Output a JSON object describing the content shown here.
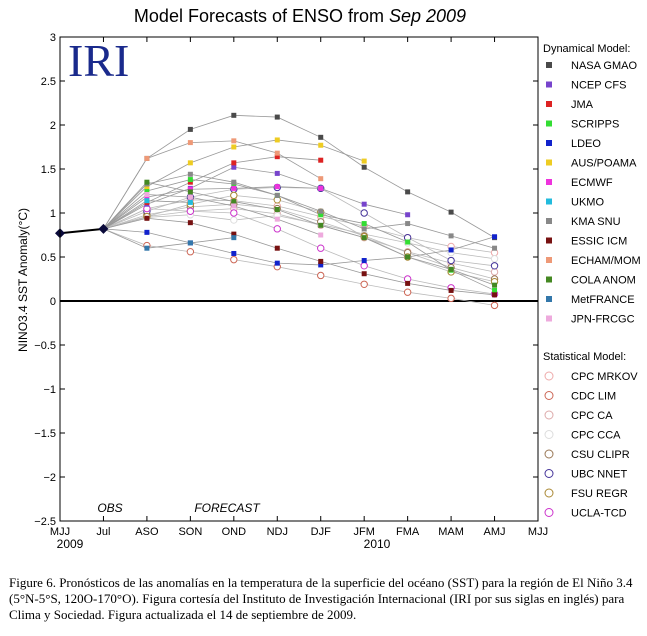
{
  "chart_data": {
    "type": "line",
    "title_prefix": "Model Forecasts of ENSO from ",
    "title_italic": "Sep 2009",
    "ylabel": "NINO3.4 SST Anomaly(°C)",
    "ylim": [
      -2.5,
      3
    ],
    "y_ticks": [
      "3",
      "2.5",
      "2",
      "1.5",
      "1",
      "0.5",
      "0",
      "−0.5",
      "−1",
      "−1.5",
      "−2",
      "−2.5"
    ],
    "y_tick_values": [
      3,
      2.5,
      2,
      1.5,
      1,
      0.5,
      0,
      -0.5,
      -1,
      -1.5,
      -2,
      -2.5
    ],
    "x_categories": [
      "MJJ",
      "Jul",
      "ASO",
      "SON",
      "OND",
      "NDJ",
      "DJF",
      "JFM",
      "FMA",
      "MAM",
      "AMJ",
      "MJJ"
    ],
    "year_labels": {
      "start": "2009",
      "end": "2010"
    },
    "obs_label": "OBS",
    "forecast_label": "FORECAST",
    "logo_text": "IRI",
    "observed": [
      0.77,
      0.82
    ],
    "dynamical_header": "Dynamical Model:",
    "statistical_header": "Statistical Model:",
    "dynamical": [
      {
        "name": "NASA GMAO",
        "color": "#4a4a4a",
        "values": [
          1.62,
          1.95,
          2.11,
          2.09,
          1.86,
          1.52,
          1.24,
          1.01,
          0.72
        ]
      },
      {
        "name": "NCEP CFS",
        "color": "#7744cc",
        "values": [
          1.1,
          1.28,
          1.52,
          1.45,
          1.28,
          1.1,
          0.98,
          null,
          null
        ]
      },
      {
        "name": "JMA",
        "color": "#dd2222",
        "values": [
          1.12,
          1.35,
          1.57,
          1.64,
          1.6,
          null,
          null,
          null,
          null
        ]
      },
      {
        "name": "SCRIPPS",
        "color": "#33dd33",
        "values": [
          1.25,
          1.38,
          1.33,
          1.2,
          0.98,
          0.88,
          0.67,
          0.35,
          0.12
        ]
      },
      {
        "name": "LDEO",
        "color": "#1122cc",
        "values": [
          0.78,
          0.66,
          0.54,
          0.43,
          0.41,
          0.46,
          0.5,
          0.58,
          0.73
        ]
      },
      {
        "name": "AUS/POAMA",
        "color": "#eecc22",
        "values": [
          1.3,
          1.57,
          1.75,
          1.83,
          1.77,
          1.59,
          null,
          null,
          null
        ]
      },
      {
        "name": "ECMWF",
        "color": "#ee33dd",
        "values": [
          1.18,
          1.27,
          1.28,
          1.3,
          1.28,
          null,
          null,
          null,
          null
        ]
      },
      {
        "name": "UKMO",
        "color": "#22bbdd",
        "values": [
          1.14,
          1.12,
          null,
          null,
          null,
          null,
          null,
          null,
          null
        ]
      },
      {
        "name": "KMA SNU",
        "color": "#888888",
        "values": [
          1.33,
          1.44,
          1.35,
          1.2,
          1.02,
          0.82,
          0.88,
          0.74,
          0.6
        ]
      },
      {
        "name": "ESSIC ICM",
        "color": "#771111",
        "values": [
          0.94,
          0.89,
          0.76,
          0.6,
          0.45,
          0.31,
          0.2,
          0.12,
          0.07
        ]
      },
      {
        "name": "ECHAM/MOM",
        "color": "#ee9977",
        "values": [
          1.62,
          1.8,
          1.82,
          1.68,
          1.39,
          null,
          null,
          null,
          null
        ]
      },
      {
        "name": "COLA ANOM",
        "color": "#448822",
        "values": [
          1.35,
          1.24,
          1.13,
          1.04,
          0.86,
          0.72,
          0.5,
          0.36,
          0.18
        ]
      },
      {
        "name": "MetFRANCE",
        "color": "#3377aa",
        "values": [
          0.6,
          0.66,
          0.72,
          null,
          null,
          null,
          null,
          null,
          null
        ]
      },
      {
        "name": "JPN-FRCGC",
        "color": "#eeaadd",
        "values": [
          1.21,
          1.18,
          1.08,
          0.93,
          0.75,
          null,
          null,
          null,
          null
        ]
      }
    ],
    "statistical": [
      {
        "name": "CPC MRKOV",
        "color": "#eeaaaa",
        "values": [
          1.05,
          1.15,
          1.14,
          1.08,
          0.96,
          0.85,
          0.72,
          0.62,
          0.55
        ]
      },
      {
        "name": "CDC LIM",
        "color": "#cc6655",
        "values": [
          0.63,
          0.56,
          0.47,
          0.39,
          0.29,
          0.19,
          0.1,
          0.03,
          -0.05
        ]
      },
      {
        "name": "CPC CA",
        "color": "#ddaaaa",
        "values": [
          0.96,
          1.02,
          1.05,
          0.99,
          0.86,
          0.72,
          0.56,
          0.43,
          0.33
        ]
      },
      {
        "name": "CPC CCA",
        "color": "#dddddd",
        "values": [
          0.95,
          0.98,
          0.92,
          0.97,
          0.87,
          0.76,
          0.66,
          0.55,
          0.48
        ]
      },
      {
        "name": "CSU CLIPR",
        "color": "#997755",
        "values": [
          0.98,
          1.07,
          1.1,
          1.05,
          0.9,
          0.74,
          0.55,
          0.38,
          0.25
        ]
      },
      {
        "name": "UBC NNET",
        "color": "#443399",
        "values": [
          1.02,
          1.18,
          1.27,
          1.29,
          1.28,
          1.0,
          0.72,
          0.46,
          0.4
        ]
      },
      {
        "name": "FSU REGR",
        "color": "#aa8833",
        "values": [
          0.96,
          1.1,
          1.2,
          1.15,
          1.01,
          0.73,
          0.5,
          0.33,
          0.22
        ]
      },
      {
        "name": "UCLA-TCD",
        "color": "#cc33cc",
        "values": [
          1.05,
          1.02,
          1.0,
          0.82,
          0.6,
          0.4,
          0.25,
          0.15,
          0.08
        ]
      }
    ]
  },
  "caption": "Figure 6. Pronósticos de las anomalías en la temperatura de la superficie del océano (SST) para la región de El Niño 3.4 (5°N-5°S, 120O-170°O). Figura cortesía del Instituto de Investigación Internacional (IRI por sus siglas en inglés) para Clima y Sociedad. Figura actualizada el 14 de septiembre de 2009."
}
